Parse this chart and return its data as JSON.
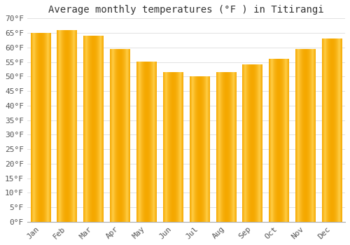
{
  "title": "Average monthly temperatures (°F ) in Titirangi",
  "months": [
    "Jan",
    "Feb",
    "Mar",
    "Apr",
    "May",
    "Jun",
    "Jul",
    "Aug",
    "Sep",
    "Oct",
    "Nov",
    "Dec"
  ],
  "values": [
    65,
    66,
    64,
    59.5,
    55,
    51.5,
    50,
    51.5,
    54,
    56,
    59.5,
    63
  ],
  "bar_color_light": "#FFCC44",
  "bar_color_dark": "#F5A800",
  "background_color": "#FFFFFF",
  "grid_color": "#DDDDDD",
  "ylim": [
    0,
    70
  ],
  "yticks": [
    0,
    5,
    10,
    15,
    20,
    25,
    30,
    35,
    40,
    45,
    50,
    55,
    60,
    65,
    70
  ],
  "ylabel_suffix": "°F",
  "title_fontsize": 10,
  "tick_fontsize": 8,
  "font_family": "monospace"
}
